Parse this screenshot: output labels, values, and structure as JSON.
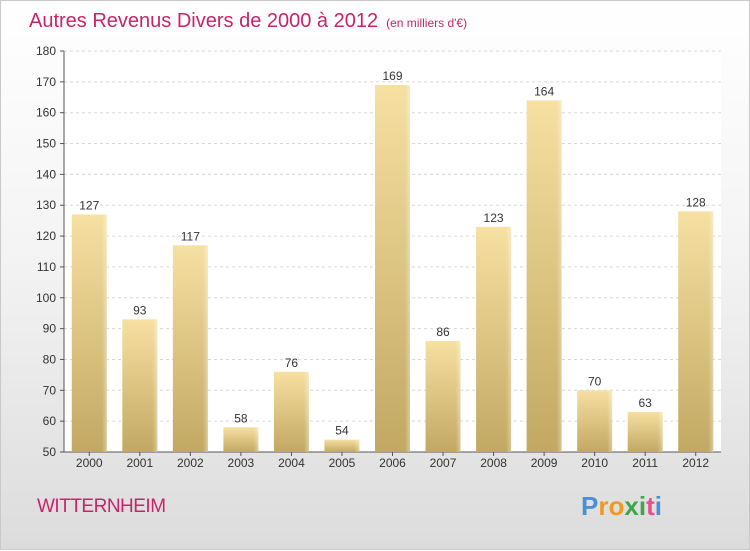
{
  "title": "Autres Revenus Divers de 2000 à 2012",
  "subtitle": "(en milliers d'€)",
  "place": "WITTERNHEIM",
  "logo": {
    "letters": [
      "P",
      "r",
      "o",
      "x",
      "i",
      "t",
      "i"
    ],
    "colors": [
      "#4a90d9",
      "#f29a1f",
      "#f29a1f",
      "#3aa84a",
      "#3aa84a",
      "#e94e8a",
      "#4a90d9"
    ]
  },
  "colors": {
    "accent": "#c8246a",
    "bar_light": "#f4dc9c",
    "bar_dark": "#c4aa64"
  },
  "chart_data": {
    "type": "bar",
    "categories": [
      "2000",
      "2001",
      "2002",
      "2003",
      "2004",
      "2005",
      "2006",
      "2007",
      "2008",
      "2009",
      "2010",
      "2011",
      "2012"
    ],
    "values": [
      127,
      93,
      117,
      58,
      76,
      54,
      169,
      86,
      123,
      164,
      70,
      63,
      128
    ],
    "ylim": [
      50,
      180
    ],
    "yticks": [
      50,
      60,
      70,
      80,
      90,
      100,
      110,
      120,
      130,
      140,
      150,
      160,
      170,
      180
    ],
    "grid": true,
    "xlabel": "",
    "ylabel": ""
  }
}
